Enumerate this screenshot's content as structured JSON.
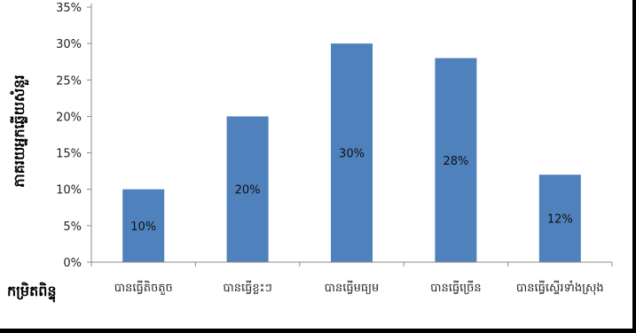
{
  "chart_data": {
    "type": "bar",
    "title": "",
    "ylabel": "ភាគរយអ្នកឆ្លើយសំនួរ",
    "xlabel": "កម្រិតពិន្ទុ",
    "categories": [
      "បានធ្វើតិចតួច",
      "បានធ្វើខ្លះៗ",
      "បានធ្វើមធ្យម",
      "បានធ្វើច្រើន",
      "បានធ្វើស្ទើរទាំងស្រុង"
    ],
    "values": [
      10,
      20,
      30,
      28,
      12
    ],
    "data_labels": [
      "10%",
      "20%",
      "30%",
      "28%",
      "12%"
    ],
    "ylim": [
      0,
      35
    ],
    "yticks": [
      "0%",
      "5%",
      "10%",
      "15%",
      "20%",
      "25%",
      "30%",
      "35%"
    ],
    "bar_color": "#4f81bd",
    "grid": false,
    "legend": "none"
  }
}
